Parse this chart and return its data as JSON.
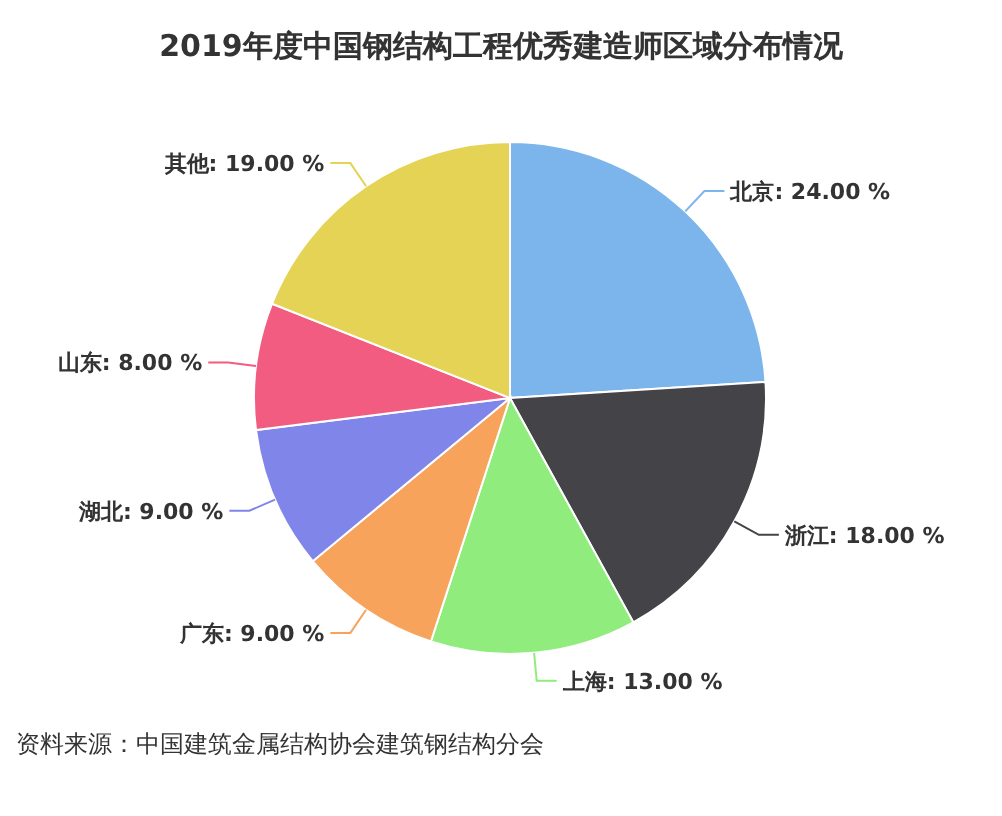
{
  "chart_data": {
    "type": "pie",
    "title": "2019年度中国钢结构工程优秀建造师区域分布情况",
    "categories": [
      "北京",
      "浙江",
      "上海",
      "广东",
      "湖北",
      "山东",
      "其他"
    ],
    "values": [
      24,
      18,
      13,
      9,
      9,
      8,
      19
    ],
    "value_labels": [
      "24.00 %",
      "18.00 %",
      "13.00 %",
      "9.00 %",
      "9.00 %",
      "8.00 %",
      "19.00 %"
    ],
    "colors": [
      "#7cb5ec",
      "#434348",
      "#90ed7d",
      "#f7a35c",
      "#8085e9",
      "#f15c80",
      "#e4d354"
    ],
    "legend": false,
    "annotations": [
      "资料来源：中国建筑金属结构协会建筑钢结构分会"
    ]
  }
}
